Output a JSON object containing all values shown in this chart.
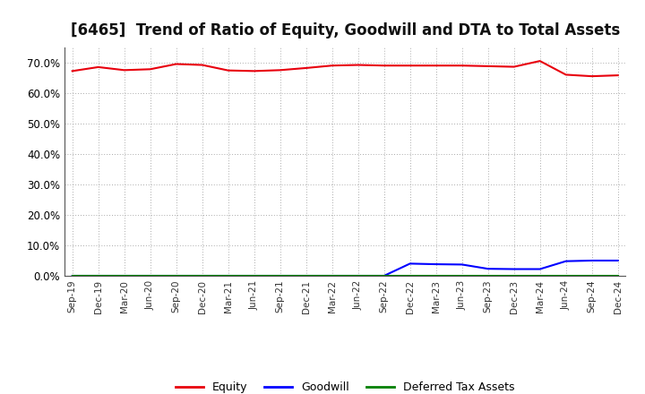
{
  "title": "[6465]  Trend of Ratio of Equity, Goodwill and DTA to Total Assets",
  "x_labels": [
    "Sep-19",
    "Dec-19",
    "Mar-20",
    "Jun-20",
    "Sep-20",
    "Dec-20",
    "Mar-21",
    "Jun-21",
    "Sep-21",
    "Dec-21",
    "Mar-22",
    "Jun-22",
    "Sep-22",
    "Dec-22",
    "Mar-23",
    "Jun-23",
    "Sep-23",
    "Dec-23",
    "Mar-24",
    "Jun-24",
    "Sep-24",
    "Dec-24"
  ],
  "equity": [
    0.672,
    0.685,
    0.675,
    0.678,
    0.695,
    0.692,
    0.674,
    0.672,
    0.675,
    0.682,
    0.69,
    0.692,
    0.69,
    0.69,
    0.69,
    0.69,
    0.688,
    0.686,
    0.705,
    0.66,
    0.655,
    0.658
  ],
  "goodwill": [
    0.0,
    0.0,
    0.0,
    0.0,
    0.0,
    0.0,
    0.0,
    0.0,
    0.0,
    0.0,
    0.0,
    0.0,
    0.0,
    0.04,
    0.038,
    0.037,
    0.023,
    0.022,
    0.022,
    0.048,
    0.05,
    0.05
  ],
  "dta": [
    0.0,
    0.0,
    0.0,
    0.0,
    0.0,
    0.0,
    0.0,
    0.0,
    0.0,
    0.0,
    0.0,
    0.0,
    0.0,
    0.0,
    0.0,
    0.0,
    0.0,
    0.0,
    0.0,
    0.0,
    0.0,
    0.0
  ],
  "equity_color": "#e8000d",
  "goodwill_color": "#0000ff",
  "dta_color": "#008000",
  "background_color": "#ffffff",
  "plot_bg_color": "#ffffff",
  "grid_color": "#aaaaaa",
  "ylim": [
    0.0,
    0.75
  ],
  "yticks": [
    0.0,
    0.1,
    0.2,
    0.3,
    0.4,
    0.5,
    0.6,
    0.7
  ],
  "legend_labels": [
    "Equity",
    "Goodwill",
    "Deferred Tax Assets"
  ],
  "title_fontsize": 12
}
